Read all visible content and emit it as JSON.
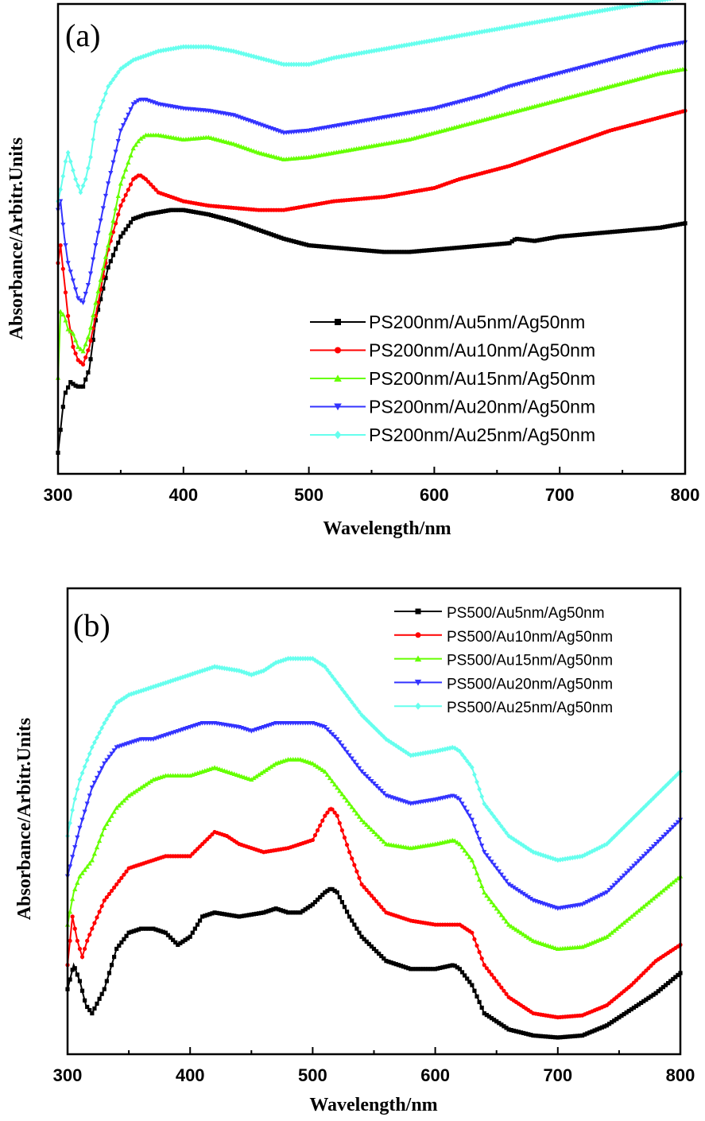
{
  "chart_data": [
    {
      "panel": "(a)",
      "type": "line",
      "xlabel": "Wavelength/nm",
      "ylabel": "Absorbance/Arbitr.Units",
      "xlim": [
        300,
        800
      ],
      "ylim": [
        0,
        100
      ],
      "xticks": [
        "300",
        "400",
        "500",
        "600",
        "700",
        "800"
      ],
      "yticks_shown": false,
      "grid": false,
      "legend_position": "lower-right",
      "series": [
        {
          "name": "PS200nm/Au5nm/Ag50nm",
          "color": "#000000",
          "marker": "square",
          "x": [
            300,
            305,
            310,
            315,
            320,
            325,
            330,
            340,
            350,
            360,
            370,
            380,
            390,
            400,
            420,
            440,
            460,
            480,
            500,
            520,
            540,
            560,
            580,
            600,
            620,
            640,
            660,
            665,
            680,
            700,
            720,
            740,
            760,
            780,
            800
          ],
          "y": [
            1,
            14,
            17,
            16,
            16,
            20,
            31,
            43,
            50,
            54,
            55,
            55.5,
            56,
            56,
            55,
            53.5,
            51.5,
            49.5,
            48,
            47.5,
            47,
            46.5,
            46.5,
            47,
            47.5,
            48,
            48.5,
            49.5,
            49,
            50,
            50.5,
            51,
            51.5,
            52,
            53
          ]
        },
        {
          "name": "PS200nm/Au10nm/Ag50nm",
          "color": "#ff0000",
          "marker": "circle",
          "x": [
            300,
            302,
            305,
            308,
            312,
            316,
            320,
            325,
            330,
            340,
            350,
            360,
            365,
            370,
            380,
            400,
            420,
            440,
            460,
            480,
            500,
            520,
            540,
            560,
            580,
            600,
            620,
            640,
            660,
            680,
            700,
            720,
            740,
            760,
            780,
            800
          ],
          "y": [
            44,
            48,
            40,
            32,
            25,
            22,
            21,
            25,
            32,
            47,
            57,
            63,
            64,
            63,
            60,
            58,
            57,
            56.5,
            56,
            56,
            57,
            58,
            58.5,
            59,
            60,
            61,
            63,
            64.5,
            66,
            68,
            70,
            72,
            74,
            75.5,
            77,
            78.5
          ]
        },
        {
          "name": "PS200nm/Au15nm/Ag50nm",
          "color": "#66ff00",
          "marker": "triangle-up",
          "x": [
            300,
            302,
            305,
            308,
            312,
            316,
            320,
            325,
            330,
            340,
            350,
            360,
            365,
            370,
            380,
            400,
            420,
            440,
            460,
            480,
            500,
            520,
            540,
            560,
            580,
            600,
            620,
            640,
            660,
            680,
            700,
            720,
            740,
            760,
            780,
            800
          ],
          "y": [
            18,
            33,
            32,
            29,
            28,
            25,
            24,
            28,
            35,
            48,
            62,
            70,
            72,
            73,
            73,
            72,
            72.5,
            71,
            69,
            67.5,
            68,
            69,
            70,
            71,
            72,
            73.5,
            75,
            76.5,
            78,
            79.5,
            81,
            82.5,
            84,
            85.5,
            87,
            88
          ]
        },
        {
          "name": "PS200nm/Au20nm/Ag50nm",
          "color": "#3333ff",
          "marker": "triangle-down",
          "x": [
            300,
            302,
            305,
            308,
            312,
            316,
            320,
            325,
            330,
            340,
            350,
            360,
            365,
            370,
            380,
            400,
            420,
            440,
            460,
            480,
            500,
            520,
            540,
            560,
            580,
            600,
            620,
            640,
            660,
            680,
            700,
            720,
            740,
            760,
            780,
            800
          ],
          "y": [
            56,
            58,
            50,
            44,
            40,
            36,
            35,
            40,
            48,
            62,
            74,
            80,
            81,
            81,
            80,
            79,
            78.5,
            77.5,
            75.5,
            73.5,
            74,
            75,
            76,
            77,
            78,
            79,
            80.5,
            82,
            84,
            85.5,
            87,
            88.5,
            90,
            91.5,
            93,
            94
          ]
        },
        {
          "name": "PS200nm/Au25nm/Ag50nm",
          "color": "#66ffee",
          "marker": "diamond",
          "x": [
            300,
            303,
            306,
            308,
            310,
            314,
            318,
            322,
            326,
            330,
            340,
            350,
            360,
            380,
            400,
            420,
            440,
            460,
            480,
            500,
            520,
            540,
            560,
            580,
            600,
            620,
            640,
            660,
            680,
            700,
            720,
            740,
            760,
            780,
            800
          ],
          "y": [
            58,
            62,
            67,
            69,
            67,
            63,
            60,
            63,
            68,
            76,
            84,
            88,
            90,
            92,
            93,
            93,
            92,
            90.5,
            89,
            89,
            90.5,
            91.5,
            92.5,
            93.5,
            94.5,
            95.5,
            96.5,
            97.5,
            98.5,
            99.5,
            100.5,
            101.5,
            102.5,
            103.5,
            104.5
          ]
        }
      ],
      "panel_label": "(a)"
    },
    {
      "panel": "(b)",
      "type": "line",
      "xlabel": "Wavelength/nm",
      "ylabel": "Absorbance/Arbitr.Units",
      "xlim": [
        300,
        800
      ],
      "ylim": [
        0,
        100
      ],
      "xticks": [
        "300",
        "400",
        "500",
        "600",
        "700",
        "800"
      ],
      "yticks_shown": false,
      "grid": false,
      "legend_position": "top-right",
      "series": [
        {
          "name": "PS500/Au5nm/Ag50nm",
          "color": "#000000",
          "marker": "square",
          "x": [
            300,
            305,
            310,
            315,
            320,
            330,
            340,
            350,
            360,
            370,
            380,
            390,
            400,
            410,
            420,
            440,
            460,
            470,
            480,
            490,
            500,
            510,
            515,
            520,
            530,
            540,
            560,
            580,
            600,
            615,
            620,
            630,
            640,
            660,
            680,
            700,
            720,
            740,
            760,
            780,
            800
          ],
          "y": [
            12,
            18,
            14,
            8,
            6,
            12,
            22,
            26,
            27,
            27,
            26,
            23,
            25,
            30,
            31,
            30,
            31,
            32,
            31,
            31,
            33,
            36,
            37,
            36,
            30,
            25,
            19,
            17,
            17,
            18,
            17,
            13,
            6,
            2,
            0.5,
            0,
            0.5,
            3,
            7,
            11,
            16
          ]
        },
        {
          "name": "PS500/Au10nm/Ag50nm",
          "color": "#ff0000",
          "marker": "circle",
          "x": [
            300,
            304,
            308,
            312,
            316,
            320,
            330,
            340,
            350,
            360,
            370,
            380,
            390,
            400,
            410,
            420,
            430,
            440,
            460,
            480,
            500,
            510,
            515,
            520,
            530,
            540,
            560,
            580,
            600,
            620,
            630,
            640,
            660,
            680,
            700,
            720,
            740,
            760,
            780,
            800
          ],
          "y": [
            18,
            30,
            24,
            20,
            24,
            27,
            34,
            38,
            42,
            43,
            44,
            45,
            45,
            45,
            48,
            51,
            50,
            48,
            46,
            47,
            49,
            55,
            57,
            55,
            46,
            38,
            31,
            29,
            28,
            28,
            26,
            18,
            10,
            6,
            5,
            5.5,
            8,
            13,
            19,
            23
          ]
        },
        {
          "name": "PS500/Au15nm/Ag50nm",
          "color": "#66ff00",
          "marker": "triangle-up",
          "x": [
            300,
            305,
            310,
            320,
            330,
            340,
            350,
            360,
            370,
            380,
            390,
            400,
            410,
            420,
            440,
            450,
            460,
            470,
            480,
            490,
            500,
            510,
            520,
            540,
            560,
            580,
            600,
            615,
            620,
            630,
            640,
            660,
            680,
            700,
            720,
            740,
            760,
            780,
            800
          ],
          "y": [
            28,
            36,
            40,
            44,
            52,
            57,
            60,
            62,
            64,
            65,
            65,
            65,
            66,
            67,
            65,
            64,
            66,
            68,
            69,
            69,
            68,
            66,
            62,
            54,
            48,
            47,
            48,
            49,
            48,
            44,
            36,
            28,
            24,
            22,
            22.5,
            25,
            30,
            35,
            40
          ]
        },
        {
          "name": "PS500/Au20nm/Ag50nm",
          "color": "#3333ff",
          "marker": "triangle-down",
          "x": [
            300,
            305,
            310,
            320,
            330,
            340,
            350,
            360,
            370,
            380,
            390,
            400,
            410,
            420,
            440,
            450,
            460,
            470,
            480,
            490,
            500,
            510,
            520,
            540,
            560,
            580,
            600,
            615,
            620,
            630,
            640,
            660,
            680,
            700,
            720,
            740,
            760,
            780,
            800
          ],
          "y": [
            40,
            46,
            52,
            62,
            68,
            72,
            73,
            74,
            74,
            75,
            76,
            77,
            78,
            78,
            77,
            76,
            77,
            78,
            78,
            78,
            78,
            77,
            74,
            66,
            60,
            58,
            59,
            60,
            59,
            54,
            46,
            38,
            34,
            32,
            33,
            36,
            42,
            48,
            54
          ]
        },
        {
          "name": "PS500/Au25nm/Ag50nm",
          "color": "#66ffee",
          "marker": "diamond",
          "x": [
            300,
            305,
            310,
            320,
            330,
            340,
            350,
            360,
            370,
            380,
            390,
            400,
            410,
            420,
            440,
            450,
            460,
            470,
            480,
            490,
            500,
            510,
            520,
            540,
            560,
            580,
            600,
            615,
            620,
            630,
            640,
            660,
            680,
            700,
            720,
            740,
            760,
            780,
            800
          ],
          "y": [
            50,
            58,
            64,
            72,
            78,
            83,
            85,
            86,
            87,
            88,
            89,
            90,
            91,
            92,
            91,
            90,
            91,
            93,
            94,
            94,
            94,
            92,
            88,
            80,
            74,
            70,
            71,
            72,
            71,
            67,
            58,
            50,
            46,
            44,
            45,
            48,
            54,
            60,
            66
          ]
        }
      ],
      "panel_label": "(b)"
    }
  ]
}
